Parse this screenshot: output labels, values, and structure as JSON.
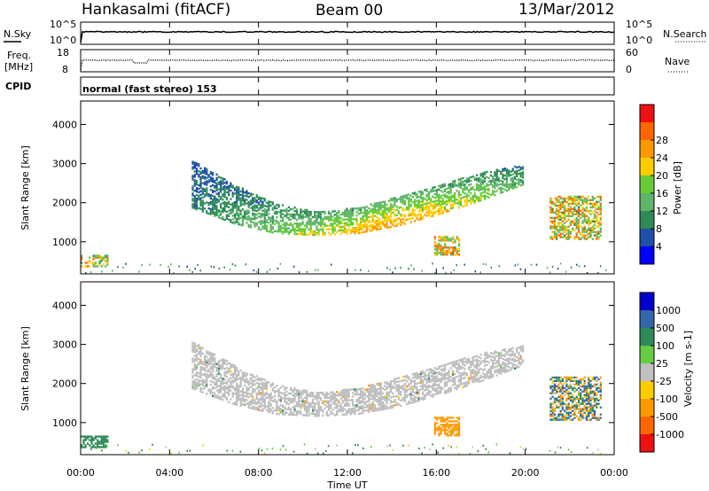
{
  "header": {
    "station": "Hankasalmi (fitACF)",
    "beam": "Beam 00",
    "date": "13/Mar/2012"
  },
  "strip_panels": {
    "noise": {
      "left_label": "N.Sky",
      "left_ticks": [
        "10^5",
        "10^0"
      ],
      "right_ticks": [
        "10^5",
        "10^0"
      ],
      "right_label": "N.Search"
    },
    "freq": {
      "left_label_1": "Freq.",
      "left_label_2": "[MHz]",
      "left_ticks": [
        "18",
        "8"
      ],
      "right_ticks": [
        "60",
        "0"
      ],
      "right_label": "Nave"
    },
    "cpid": {
      "label": "CPID",
      "text": "normal (fast stereo) 153"
    }
  },
  "colors": {
    "power_scale": [
      "#0000ff",
      "#1f4fa8",
      "#2e8b57",
      "#5fb56a",
      "#66cc33",
      "#ffcc00",
      "#ff9900",
      "#ff6600",
      "#ee1111"
    ],
    "velocity_scale": [
      "#0000cc",
      "#3366aa",
      "#2e8b57",
      "#66cc44",
      "#c0c0c0",
      "#ffcc00",
      "#ff9900",
      "#ff6600",
      "#ee1111"
    ],
    "ground_scatter": "#bebebe"
  },
  "chart_data": [
    {
      "type": "heatmap",
      "title": "",
      "quantity": "Power",
      "xlabel": "Time UT",
      "ylabel": "Slant Range [km]",
      "xlim_hours": [
        0,
        24
      ],
      "ylim_km": [
        180,
        4600
      ],
      "x_tick_labels": [
        "00:00",
        "04:00",
        "08:00",
        "12:00",
        "16:00",
        "20:00",
        "00:00"
      ],
      "y_tick_labels": [
        "1000",
        "2000",
        "3000",
        "4000"
      ],
      "colorbar_label": "Power [dB]",
      "colorbar_ticks": [
        "4",
        "8",
        "12",
        "16",
        "20",
        "24",
        "28"
      ],
      "features": [
        {
          "name": "main-arc",
          "t_start": 5.0,
          "t_end": 19.9,
          "range_low_km": [
            1900,
            1500,
            1250,
            1200,
            1250,
            1450,
            1750,
            2100,
            2500
          ],
          "range_high_km": [
            3100,
            2500,
            2000,
            1800,
            1900,
            2200,
            2500,
            2800,
            3000
          ],
          "power_db": [
            6,
            10,
            14,
            18,
            22,
            20,
            16,
            10
          ]
        },
        {
          "name": "late-echoes",
          "t_start": 21.1,
          "t_end": 23.4,
          "range_km": [
            1100,
            2200
          ],
          "power_db_peak": 28
        },
        {
          "name": "compact-echo",
          "t_start": 15.9,
          "t_end": 17.0,
          "range_km": [
            700,
            1150
          ],
          "power_db_peak": 28
        },
        {
          "name": "near-range",
          "t_start": 0.0,
          "t_end": 1.2,
          "range_km": [
            400,
            700
          ],
          "power_db_peak": 26
        }
      ]
    },
    {
      "type": "heatmap",
      "title": "",
      "quantity": "Velocity",
      "xlabel": "Time UT",
      "ylabel": "Slant Range [km]",
      "xlim_hours": [
        0,
        24
      ],
      "ylim_km": [
        180,
        4600
      ],
      "x_tick_labels": [
        "00:00",
        "04:00",
        "08:00",
        "12:00",
        "16:00",
        "20:00",
        "00:00"
      ],
      "y_tick_labels": [
        "1000",
        "2000",
        "3000",
        "4000"
      ],
      "colorbar_label": "Velocity [m s-1]",
      "colorbar_ticks": [
        "1000",
        "500",
        "100",
        "25",
        "-25",
        "-100",
        "-500",
        "-1000"
      ],
      "features": [
        {
          "name": "ground-scatter-arc",
          "t_start": 5.0,
          "t_end": 19.9,
          "velocity_ms": 0,
          "note_visible": "grey"
        },
        {
          "name": "compact-echo",
          "t_start": 15.9,
          "t_end": 17.0,
          "range_km": [
            700,
            1150
          ],
          "velocity_ms": -300
        },
        {
          "name": "late-echoes",
          "t_start": 21.1,
          "t_end": 23.4,
          "range_km": [
            1100,
            2200
          ],
          "velocity_ms_range": [
            -500,
            1000
          ]
        },
        {
          "name": "near-range",
          "t_start": 0.0,
          "t_end": 1.2,
          "range_km": [
            400,
            700
          ],
          "velocity_ms": 200
        }
      ]
    }
  ]
}
